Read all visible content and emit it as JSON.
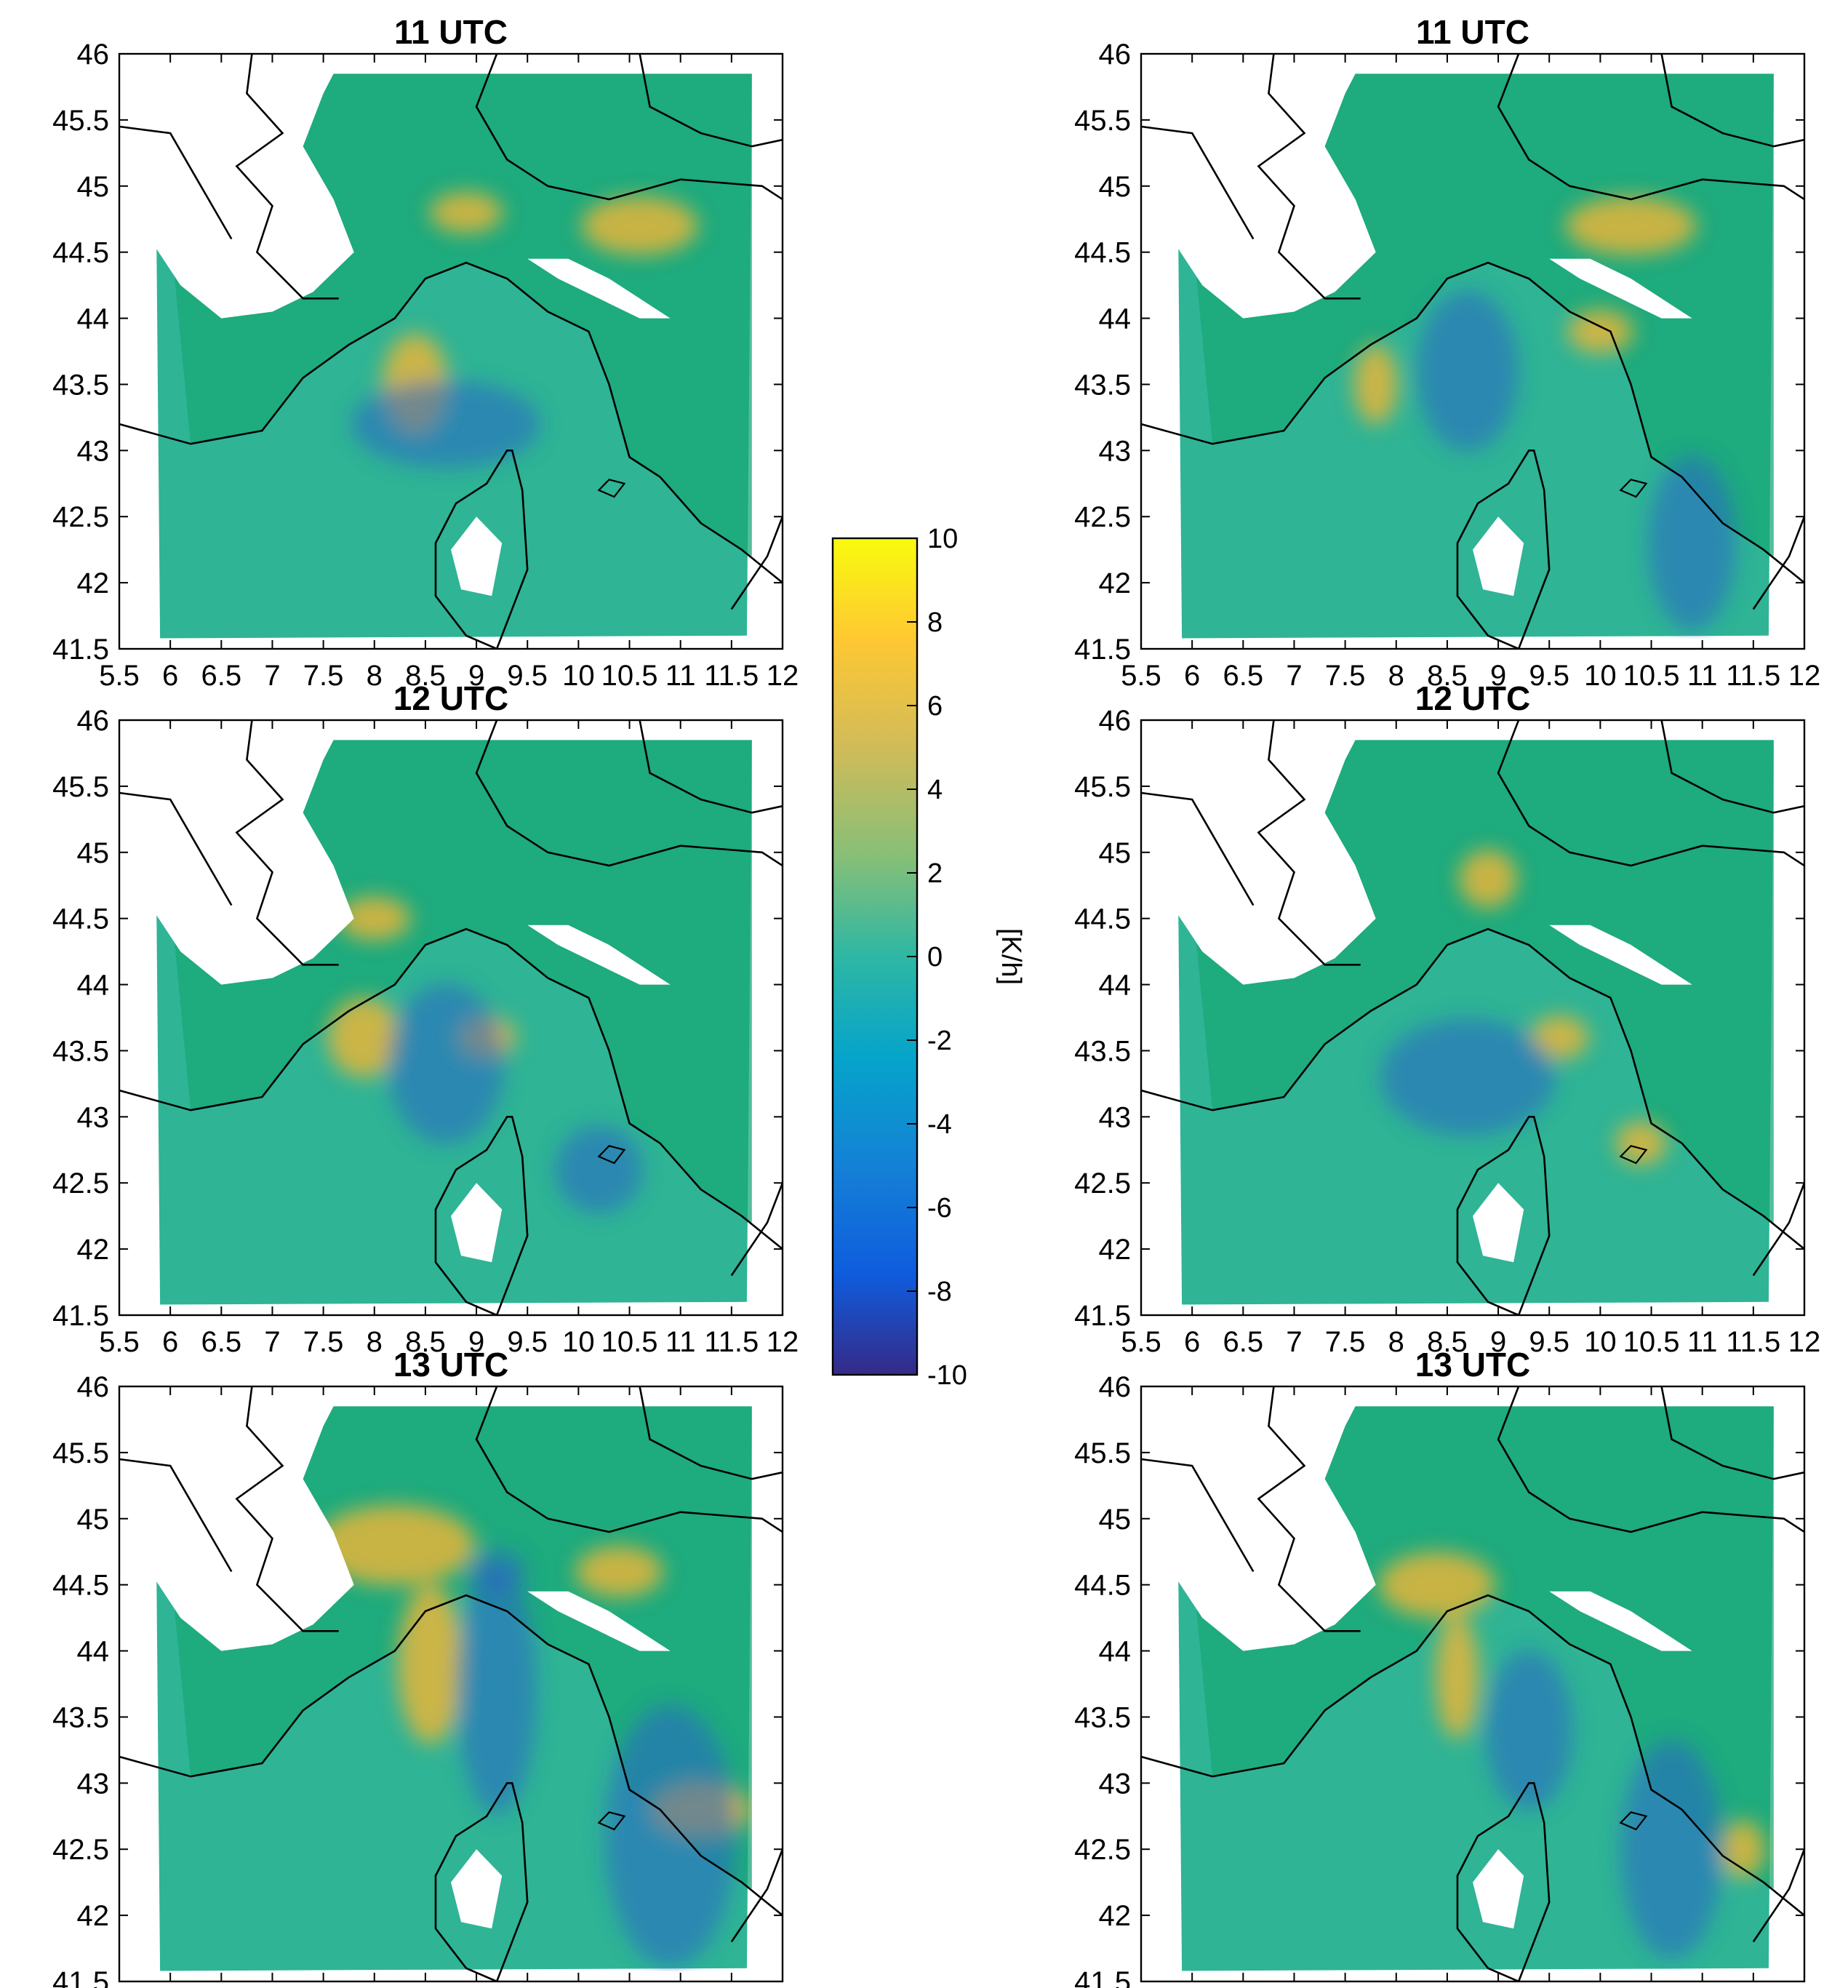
{
  "figure": {
    "colors": {
      "background_sea": "#2fb495",
      "land_plain": "#1aa877",
      "warm_patch": "#e6b53a",
      "cool_patch": "#2a64c8",
      "masked": "#ffffff",
      "coastline": "#000000"
    },
    "panels": [
      {
        "id": "p-11-left",
        "title": "11 UTC"
      },
      {
        "id": "p-11-right",
        "title": "11 UTC"
      },
      {
        "id": "p-12-left",
        "title": "12 UTC"
      },
      {
        "id": "p-12-right",
        "title": "12 UTC"
      },
      {
        "id": "p-13-left",
        "title": "13 UTC"
      },
      {
        "id": "p-13-right",
        "title": "13 UTC"
      }
    ],
    "x_ticks": [
      "5.5",
      "6",
      "6.5",
      "7",
      "7.5",
      "8",
      "8.5",
      "9",
      "9.5",
      "10",
      "10.5",
      "11",
      "11.5",
      "12"
    ],
    "y_ticks": [
      "46",
      "45.5",
      "45",
      "44.5",
      "44",
      "43.5",
      "43",
      "42.5",
      "42",
      "41.5"
    ],
    "x_range": [
      5.5,
      12
    ],
    "y_range": [
      41.5,
      46
    ],
    "colorbar": {
      "label": "[K/h]",
      "ticks": [
        "10",
        "8",
        "6",
        "4",
        "2",
        "0",
        "-2",
        "-4",
        "-6",
        "-8",
        "-10"
      ],
      "range": [
        -10,
        10
      ],
      "colormap": "parula"
    }
  }
}
